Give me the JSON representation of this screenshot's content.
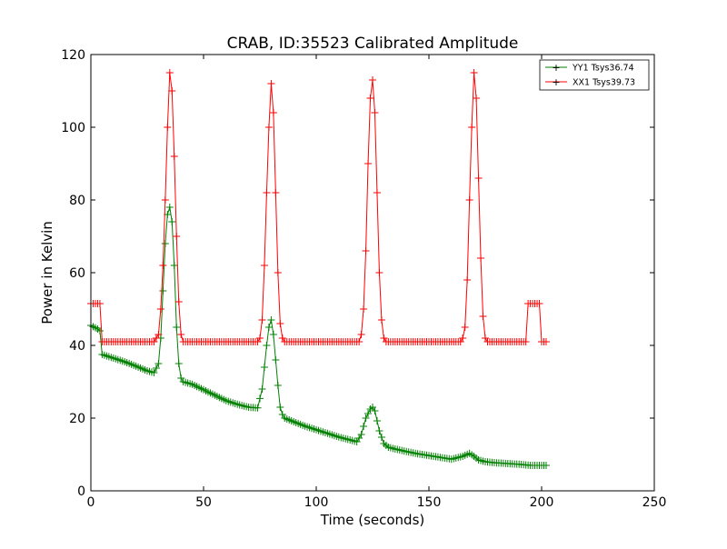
{
  "chart_data": {
    "type": "line",
    "title": "CRAB, ID:35523 Calibrated Amplitude",
    "xlabel": "Time (seconds)",
    "ylabel": "Power in Kelvin",
    "xlim": [
      0,
      250
    ],
    "ylim": [
      0,
      120
    ],
    "xticks": [
      0,
      50,
      100,
      150,
      200,
      250
    ],
    "yticks": [
      0,
      20,
      40,
      60,
      80,
      100,
      120
    ],
    "xtick_labels": [
      "0",
      "50",
      "100",
      "150",
      "200",
      "250"
    ],
    "ytick_labels": [
      "0",
      "20",
      "40",
      "60",
      "80",
      "100",
      "120"
    ],
    "grid": false,
    "legend_position": "top-right",
    "marker": "+",
    "series": [
      {
        "name": "YY1 Tsys36.74",
        "color": "#008000",
        "x": [
          0,
          3,
          4,
          5,
          10,
          15,
          20,
          25,
          28,
          30,
          31,
          32,
          33,
          34,
          35,
          36,
          37,
          38,
          39,
          40,
          41,
          45,
          50,
          55,
          60,
          65,
          70,
          74,
          76,
          77,
          78,
          79,
          80,
          81,
          82,
          83,
          84,
          85,
          86,
          90,
          95,
          100,
          105,
          110,
          115,
          118,
          120,
          122,
          124,
          125,
          126,
          128,
          130,
          132,
          135,
          140,
          145,
          150,
          155,
          160,
          165,
          168,
          170,
          172,
          175,
          180,
          185,
          190,
          195,
          200,
          202
        ],
        "y": [
          45.5,
          44.5,
          44,
          37.5,
          36.5,
          35.5,
          34.3,
          33,
          32.5,
          35,
          42,
          55,
          68,
          76,
          78,
          74,
          62,
          45,
          35,
          31,
          30,
          29.3,
          27.8,
          26.3,
          24.8,
          23.8,
          23,
          22.8,
          28,
          34,
          40,
          45,
          47,
          43,
          36,
          29,
          23,
          21,
          20,
          19,
          17.8,
          16.8,
          15.8,
          14.8,
          14,
          13.5,
          15.5,
          20,
          22.5,
          23,
          22,
          16.5,
          13,
          12,
          11.5,
          10.8,
          10.2,
          9.7,
          9.2,
          8.7,
          9.5,
          10.3,
          9.5,
          8.5,
          8,
          7.7,
          7.5,
          7.3,
          7,
          7,
          7
        ]
      },
      {
        "name": "XX1 Tsys39.73",
        "color": "#ff0000",
        "x": [
          0,
          4,
          5,
          10,
          20,
          28,
          30,
          31,
          32,
          33,
          34,
          35,
          36,
          37,
          38,
          39,
          40,
          41,
          42,
          50,
          60,
          70,
          74,
          75,
          76,
          77,
          78,
          79,
          80,
          81,
          82,
          83,
          84,
          85,
          86,
          87,
          95,
          105,
          115,
          119,
          120,
          121,
          122,
          123,
          124,
          125,
          126,
          127,
          128,
          129,
          130,
          131,
          132,
          140,
          150,
          160,
          164,
          165,
          166,
          167,
          168,
          169,
          170,
          171,
          172,
          173,
          174,
          175,
          176,
          177,
          185,
          193,
          194,
          195,
          197,
          199,
          200,
          202
        ],
        "y": [
          51.5,
          51.5,
          41,
          41,
          41,
          41,
          43,
          50,
          62,
          80,
          100,
          115,
          110,
          92,
          70,
          52,
          43,
          41,
          41,
          41,
          41,
          41,
          41,
          42,
          47,
          62,
          82,
          100,
          112,
          104,
          82,
          60,
          46,
          42,
          41,
          41,
          41,
          41,
          41,
          41,
          43,
          50,
          66,
          90,
          108,
          113,
          104,
          82,
          60,
          47,
          42,
          41,
          41,
          41,
          41,
          41,
          41,
          42,
          45,
          58,
          80,
          100,
          115,
          108,
          86,
          64,
          48,
          42,
          41,
          41,
          41,
          41,
          51.5,
          51.5,
          51.5,
          51.5,
          41,
          41
        ]
      }
    ]
  }
}
